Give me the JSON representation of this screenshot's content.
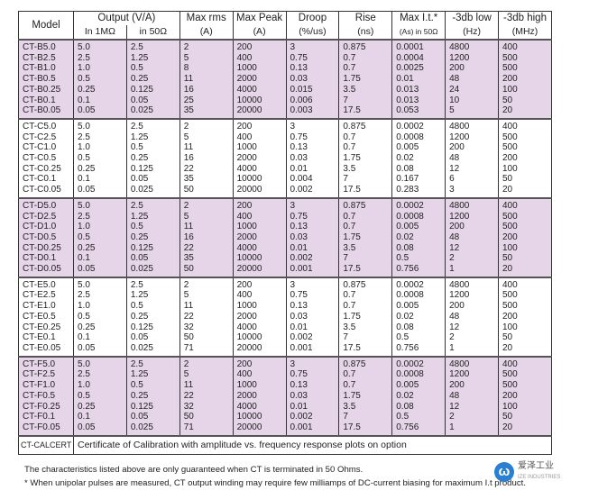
{
  "header": {
    "model": "Model",
    "output": "Output (V/A)",
    "in1m": "In 1MΩ",
    "in50": "in 50Ω",
    "maxrms": "Max rms",
    "maxrms_u": "(A)",
    "maxpeak": "Max Peak",
    "maxpeak_u": "(A)",
    "droop": "Droop",
    "droop_u": "(%/us)",
    "rise": "Rise",
    "rise_u": "(ns)",
    "maxit": "Max I.t.*",
    "maxit_u": "(As) in 50Ω",
    "low": "-3db low",
    "low_u": "(Hz)",
    "high": "-3db high",
    "high_u": "(MHz)"
  },
  "groups": [
    {
      "shaded": true,
      "rows": [
        [
          "CT-B5.0",
          "5.0",
          "2.5",
          "2",
          "200",
          "3",
          "0.875",
          "0.0001",
          "4800",
          "400"
        ],
        [
          "CT-B2.5",
          "2.5",
          "1.25",
          "5",
          "400",
          "0.75",
          "0.7",
          "0.0004",
          "1200",
          "500"
        ],
        [
          "CT-B1.0",
          "1.0",
          "0.5",
          "8",
          "1000",
          "0.13",
          "0.7",
          "0.0025",
          "200",
          "500"
        ],
        [
          "CT-B0.5",
          "0.5",
          "0.25",
          "11",
          "2000",
          "0.03",
          "1.75",
          "0.01",
          "48",
          "200"
        ],
        [
          "CT-B0.25",
          "0.25",
          "0.125",
          "16",
          "4000",
          "0.015",
          "3.5",
          "0.013",
          "24",
          "100"
        ],
        [
          "CT-B0.1",
          "0.1",
          "0.05",
          "25",
          "10000",
          "0.006",
          "7",
          "0.013",
          "10",
          "50"
        ],
        [
          "CT-B0.05",
          "0.05",
          "0.025",
          "35",
          "20000",
          "0.003",
          "17.5",
          "0.053",
          "5",
          "20"
        ]
      ]
    },
    {
      "shaded": false,
      "rows": [
        [
          "CT-C5.0",
          "5.0",
          "2.5",
          "2",
          "200",
          "3",
          "0.875",
          "0.0002",
          "4800",
          "400"
        ],
        [
          "CT-C2.5",
          "2.5",
          "1.25",
          "5",
          "400",
          "0.75",
          "0.7",
          "0.0008",
          "1200",
          "500"
        ],
        [
          "CT-C1.0",
          "1.0",
          "0.5",
          "11",
          "1000",
          "0.13",
          "0.7",
          "0.005",
          "200",
          "500"
        ],
        [
          "CT-C0.5",
          "0.5",
          "0.25",
          "16",
          "2000",
          "0.03",
          "1.75",
          "0.02",
          "48",
          "200"
        ],
        [
          "CT-C0.25",
          "0.25",
          "0.125",
          "22",
          "4000",
          "0.01",
          "3.5",
          "0.08",
          "12",
          "100"
        ],
        [
          "CT-C0.1",
          "0.1",
          "0.05",
          "35",
          "10000",
          "0.004",
          "7",
          "0.167",
          "6",
          "50"
        ],
        [
          "CT-C0.05",
          "0.05",
          "0.025",
          "50",
          "20000",
          "0.002",
          "17.5",
          "0.283",
          "3",
          "20"
        ]
      ]
    },
    {
      "shaded": true,
      "rows": [
        [
          "CT-D5.0",
          "5.0",
          "2.5",
          "2",
          "200",
          "3",
          "0.875",
          "0.0002",
          "4800",
          "400"
        ],
        [
          "CT-D2.5",
          "2.5",
          "1.25",
          "5",
          "400",
          "0.75",
          "0.7",
          "0.0008",
          "1200",
          "500"
        ],
        [
          "CT-D1.0",
          "1.0",
          "0.5",
          "11",
          "1000",
          "0.13",
          "0.7",
          "0.005",
          "200",
          "500"
        ],
        [
          "CT-D0.5",
          "0.5",
          "0.25",
          "16",
          "2000",
          "0.03",
          "1.75",
          "0.02",
          "48",
          "200"
        ],
        [
          "CT-D0.25",
          "0.25",
          "0.125",
          "22",
          "4000",
          "0.01",
          "3.5",
          "0.08",
          "12",
          "100"
        ],
        [
          "CT-D0.1",
          "0.1",
          "0.05",
          "35",
          "10000",
          "0.002",
          "7",
          "0.5",
          "2",
          "50"
        ],
        [
          "CT-D0.05",
          "0.05",
          "0.025",
          "50",
          "20000",
          "0.001",
          "17.5",
          "0.756",
          "1",
          "20"
        ]
      ]
    },
    {
      "shaded": false,
      "rows": [
        [
          "CT-E5.0",
          "5.0",
          "2.5",
          "2",
          "200",
          "3",
          "0.875",
          "0.0002",
          "4800",
          "400"
        ],
        [
          "CT-E2.5",
          "2.5",
          "1.25",
          "5",
          "400",
          "0.75",
          "0.7",
          "0.0008",
          "1200",
          "500"
        ],
        [
          "CT-E1.0",
          "1.0",
          "0.5",
          "11",
          "1000",
          "0.13",
          "0.7",
          "0.005",
          "200",
          "500"
        ],
        [
          "CT-E0.5",
          "0.5",
          "0.25",
          "22",
          "2000",
          "0.03",
          "1.75",
          "0.02",
          "48",
          "200"
        ],
        [
          "CT-E0.25",
          "0.25",
          "0.125",
          "32",
          "4000",
          "0.01",
          "3.5",
          "0.08",
          "12",
          "100"
        ],
        [
          "CT-E0.1",
          "0.1",
          "0.05",
          "50",
          "10000",
          "0.002",
          "7",
          "0.5",
          "2",
          "50"
        ],
        [
          "CT-E0.05",
          "0.05",
          "0.025",
          "71",
          "20000",
          "0.001",
          "17.5",
          "0.756",
          "1",
          "20"
        ]
      ]
    },
    {
      "shaded": true,
      "rows": [
        [
          "CT-F5.0",
          "5.0",
          "2.5",
          "2",
          "200",
          "3",
          "0.875",
          "0.0002",
          "4800",
          "400"
        ],
        [
          "CT-F2.5",
          "2.5",
          "1.25",
          "5",
          "400",
          "0.75",
          "0.7",
          "0.0008",
          "1200",
          "500"
        ],
        [
          "CT-F1.0",
          "1.0",
          "0.5",
          "11",
          "1000",
          "0.13",
          "0.7",
          "0.005",
          "200",
          "500"
        ],
        [
          "CT-F0.5",
          "0.5",
          "0.25",
          "22",
          "2000",
          "0.03",
          "1.75",
          "0.02",
          "48",
          "200"
        ],
        [
          "CT-F0.25",
          "0.25",
          "0.125",
          "32",
          "4000",
          "0.01",
          "3.5",
          "0.08",
          "12",
          "100"
        ],
        [
          "CT-F0.1",
          "0.1",
          "0.05",
          "50",
          "10000",
          "0.002",
          "7",
          "0.5",
          "2",
          "50"
        ],
        [
          "CT-F0.05",
          "0.05",
          "0.025",
          "71",
          "20000",
          "0.001",
          "17.5",
          "0.756",
          "1",
          "20"
        ]
      ]
    }
  ],
  "calcert": {
    "model": "CT-CALCERT",
    "text": "Certificate of Calibration with amplitude vs. frequency response plots on option"
  },
  "footnotes": [
    "The characteristics listed above are only guaranteed when CT is terminated in 50 Ohms.",
    "* When unipolar pulses are measured, CT output winding may require few milliamps of DC-current biasing for maximum I.t product."
  ],
  "logo": {
    "cn": "爱泽工业",
    "en": "IZE INDUSTRIES",
    "color": "#2a7fd0"
  }
}
